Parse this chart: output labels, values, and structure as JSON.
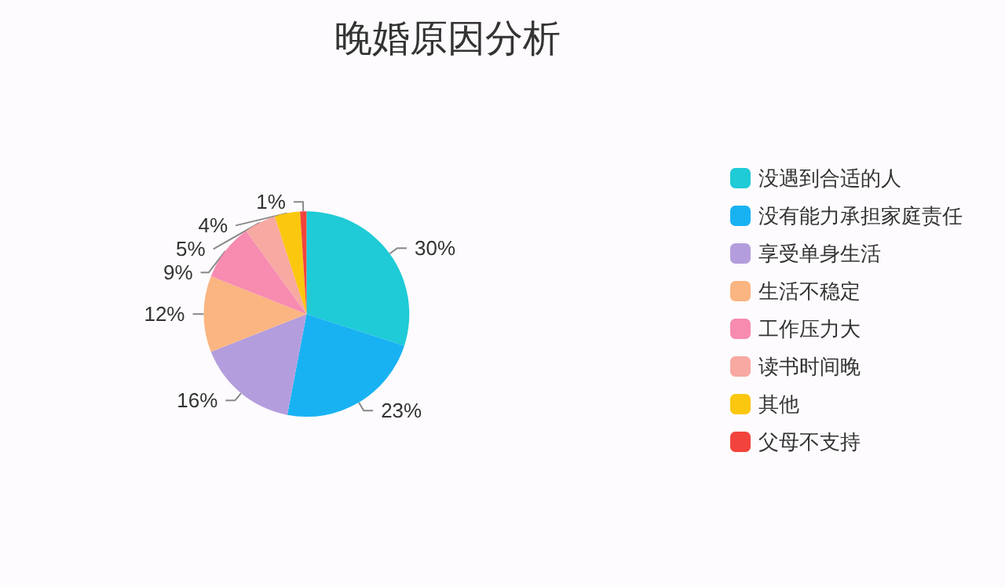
{
  "chart_data": {
    "type": "pie",
    "title": "晚婚原因分析",
    "categories": [
      "没遇到合适的人",
      "没有能力承担家庭责任",
      "享受单身生活",
      "生活不稳定",
      "工作压力大",
      "读书时间晚",
      "其他",
      "父母不支持"
    ],
    "values": [
      30,
      23,
      16,
      12,
      9,
      5,
      4,
      1
    ],
    "value_labels": [
      "30%",
      "23%",
      "16%",
      "12%",
      "9%",
      "5%",
      "4%",
      "1%"
    ],
    "colors": [
      "#1ecbd6",
      "#18b2f2",
      "#b49ddd",
      "#fab581",
      "#f78bb0",
      "#f7a9a2",
      "#fbc70f",
      "#f2443c"
    ],
    "legend": "right"
  }
}
